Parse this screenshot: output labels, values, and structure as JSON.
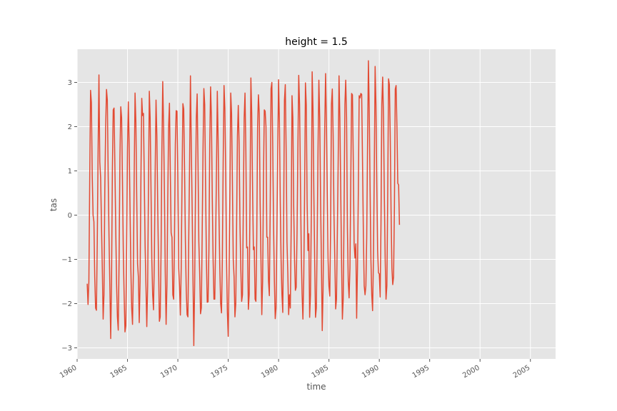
{
  "chart_data": {
    "type": "line",
    "title": "height = 1.5",
    "xlabel": "time",
    "ylabel": "tas",
    "xlim": [
      1960.0,
      2007.5
    ],
    "ylim": [
      -3.25,
      3.75
    ],
    "x_ticks": [
      1960,
      1965,
      1970,
      1975,
      1980,
      1985,
      1990,
      1995,
      2000,
      2005
    ],
    "x_tick_labels": [
      "1960",
      "1965",
      "1970",
      "1975",
      "1980",
      "1985",
      "1990",
      "1995",
      "2000",
      "2005"
    ],
    "y_ticks": [
      -3,
      -2,
      -1,
      0,
      1,
      2,
      3
    ],
    "y_tick_labels": [
      "−3",
      "−2",
      "−1",
      "0",
      "1",
      "2",
      "3"
    ],
    "grid": true,
    "style": "ggplot",
    "colors": {
      "line": "#e24a33",
      "panel": "#e5e5e5",
      "grid": "#ffffff",
      "text": "#555555"
    },
    "series": [
      {
        "x_start": 1961.0,
        "x_step_months": 1,
        "values": [
          -1.55,
          -2.02,
          -1.5,
          0.8,
          2.82,
          2.55,
          0.9,
          0.0,
          -0.15,
          -1.4,
          -2.1,
          -2.15,
          -0.6,
          1.5,
          3.17,
          1.2,
          0.85,
          -0.2,
          -1.2,
          -2.35,
          -1.8,
          0.6,
          2.0,
          2.84,
          2.6,
          0.9,
          -0.5,
          -1.6,
          -2.79,
          -1.5,
          1.0,
          2.38,
          2.42,
          1.1,
          -0.3,
          -1.55,
          -2.3,
          -2.6,
          -1.0,
          1.3,
          2.45,
          2.2,
          0.8,
          -0.8,
          -1.8,
          -2.64,
          -2.5,
          -0.7,
          1.5,
          2.56,
          1.6,
          0.2,
          -1.2,
          -2.1,
          -2.47,
          -1.3,
          0.9,
          2.76,
          2.1,
          0.4,
          -1.1,
          -1.4,
          -2.43,
          -1.5,
          0.8,
          2.64,
          2.25,
          2.3,
          0.8,
          -0.7,
          -1.6,
          -2.52,
          -1.6,
          0.6,
          2.8,
          2.2,
          0.6,
          -1.0,
          -1.8,
          -2.14,
          -1.0,
          1.0,
          2.6,
          1.8,
          0.2,
          -1.1,
          -2.4,
          -2.3,
          -0.8,
          1.5,
          3.02,
          2.0,
          0.5,
          -1.3,
          -2.47,
          -1.6,
          0.4,
          2.0,
          2.53,
          1.0,
          -0.4,
          -0.5,
          -1.8,
          -1.9,
          -0.5,
          1.6,
          2.36,
          2.35,
          0.8,
          -1.2,
          -1.6,
          -2.26,
          -1.2,
          0.8,
          2.52,
          2.4,
          1.0,
          -0.6,
          -1.7,
          -2.25,
          -2.3,
          -0.5,
          1.2,
          3.15,
          1.6,
          0.2,
          -1.4,
          -2.95,
          -1.6,
          0.5,
          2.2,
          2.74,
          1.2,
          -0.6,
          -1.3,
          -2.23,
          -2.1,
          -0.4,
          1.5,
          2.86,
          2.5,
          0.7,
          -1.0,
          -1.97,
          -1.96,
          -0.8,
          1.6,
          2.9,
          2.2,
          0.4,
          -1.0,
          -1.9,
          -1.9,
          -0.6,
          1.0,
          2.8,
          1.7,
          0.0,
          -1.2,
          -2.0,
          -2.21,
          -1.0,
          1.2,
          2.93,
          2.4,
          1.0,
          -1.0,
          -2.2,
          -2.74,
          -1.3,
          0.5,
          2.76,
          2.3,
          0.7,
          -1.0,
          -1.4,
          -2.3,
          -2.0,
          -0.2,
          1.8,
          2.48,
          1.6,
          -0.2,
          -1.2,
          -1.95,
          -1.8,
          0.2,
          2.2,
          2.76,
          1.5,
          -0.74,
          -0.72,
          -2.13,
          -1.8,
          0.4,
          3.1,
          2.3,
          0.6,
          -0.78,
          -0.72,
          -1.9,
          -1.95,
          -0.5,
          2.0,
          2.72,
          2.3,
          0.3,
          -1.0,
          -2.25,
          -1.5,
          0.8,
          2.38,
          2.35,
          2.0,
          -0.5,
          -0.5,
          -1.5,
          -1.82,
          0.1,
          2.86,
          3.0,
          1.6,
          -0.2,
          -1.5,
          -2.34,
          -2.1,
          -0.4,
          1.5,
          3.06,
          2.1,
          0.3,
          -1.0,
          -1.8,
          -2.2,
          -0.2,
          2.6,
          2.95,
          1.5,
          -0.6,
          -1.3,
          -2.25,
          -1.8,
          -2.1,
          -0.3,
          2.7,
          2.2,
          0.2,
          -1.0,
          -1.7,
          -1.63,
          -0.4,
          1.5,
          3.16,
          2.5,
          0.8,
          -0.8,
          -1.8,
          -2.35,
          -1.4,
          0.5,
          2.99,
          2.5,
          0.3,
          -0.8,
          -0.42,
          -2.31,
          -1.8,
          0.0,
          3.24,
          2.4,
          0.5,
          -1.0,
          -2.31,
          -2.1,
          -0.5,
          1.5,
          3.05,
          2.2,
          0.4,
          -1.0,
          -2.61,
          -1.7,
          0.3,
          2.0,
          3.2,
          2.1,
          0.5,
          -1.0,
          -1.6,
          -1.83,
          -0.2,
          2.5,
          2.85,
          1.8,
          0.0,
          -1.0,
          -2.12,
          -1.9,
          -0.4,
          1.2,
          3.15,
          2.2,
          0.6,
          -1.0,
          -2.35,
          -1.9,
          0.0,
          2.5,
          3.05,
          2.2,
          -0.3,
          -1.5,
          -1.87,
          -1.2,
          0.7,
          2.75,
          2.72,
          1.2,
          -0.65,
          -0.97,
          -0.65,
          -2.33,
          -1.2,
          0.5,
          2.7,
          2.65,
          2.75,
          2.73,
          1.2,
          -0.4,
          -1.6,
          -1.8,
          -1.6,
          -0.5,
          1.6,
          3.49,
          2.4,
          0.6,
          -1.0,
          -1.8,
          -2.16,
          -1.0,
          1.0,
          3.36,
          2.5,
          0.7,
          -0.8,
          -1.3,
          -1.33,
          -1.85,
          -0.2,
          2.5,
          3.12,
          2.2,
          0.4,
          -1.0,
          -1.9,
          -1.6,
          0.4,
          3.08,
          2.95,
          1.8,
          0.1,
          -1.2,
          -1.57,
          -1.4,
          0.2,
          2.85,
          2.93,
          2.0,
          0.72,
          0.68,
          -0.22
        ]
      }
    ]
  }
}
